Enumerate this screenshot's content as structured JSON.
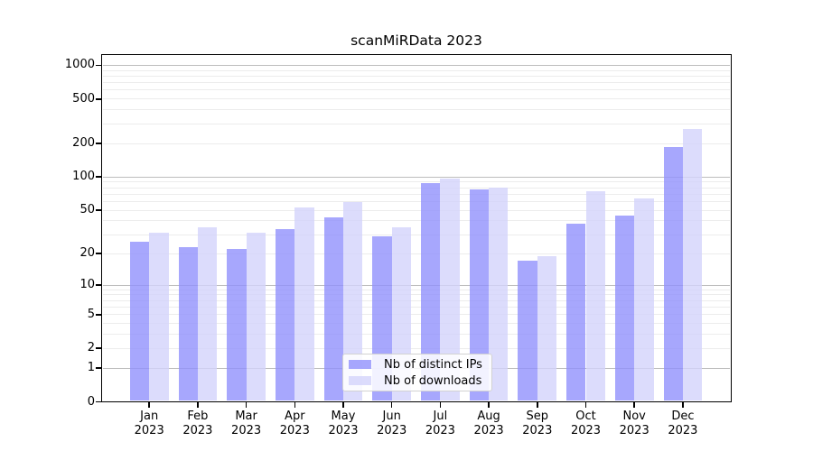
{
  "title": "scanMiRData 2023",
  "chart_data": {
    "type": "bar",
    "title": "scanMiRData 2023",
    "categories": [
      "Jan 2023",
      "Feb 2023",
      "Mar 2023",
      "Apr 2023",
      "May 2023",
      "Jun 2023",
      "Jul 2023",
      "Aug 2023",
      "Sep 2023",
      "Oct 2023",
      "Nov 2023",
      "Dec 2023"
    ],
    "series": [
      {
        "name": "Nb of distinct IPs",
        "color": "#9191fc",
        "fill_opacity": 0.8,
        "values": [
          26,
          23,
          22,
          34,
          43,
          29,
          89,
          77,
          17,
          38,
          45,
          185
        ]
      },
      {
        "name": "Nb of downloads",
        "color": "#d3d3fb",
        "fill_opacity": 0.8,
        "values": [
          31,
          35,
          31,
          53,
          59,
          35,
          97,
          81,
          19,
          74,
          64,
          270
        ]
      }
    ],
    "y_scale": "log1p",
    "y_ticks": [
      0,
      1,
      2,
      5,
      10,
      20,
      50,
      100,
      200,
      500,
      1000
    ],
    "ylim": [
      0,
      1250
    ],
    "xlabel": "",
    "ylabel": "",
    "grid": true,
    "gridline_major_color": "#bdbdbd",
    "gridline_minor_color": "#ececec",
    "legend_position": "bottom-center"
  }
}
